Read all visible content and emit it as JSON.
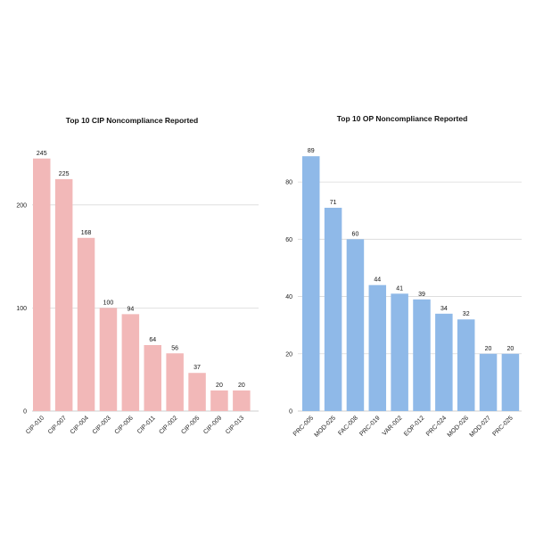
{
  "chart_data": [
    {
      "type": "bar",
      "title": "Top 10 CIP Noncompliance Reported",
      "categories": [
        "CIP-010",
        "CIP-007",
        "CIP-004",
        "CIP-003",
        "CIP-006",
        "CIP-011",
        "CIP-002",
        "CIP-005",
        "CIP-009",
        "CIP-013"
      ],
      "values": [
        245,
        225,
        168,
        100,
        94,
        64,
        56,
        37,
        20,
        20
      ],
      "ylim": [
        0,
        250
      ],
      "yticks": [
        0,
        100,
        200
      ],
      "grid": true,
      "color": "#f2b8b8"
    },
    {
      "type": "bar",
      "title": "Top 10 OP Noncompliance Reported",
      "categories": [
        "PRC-005",
        "MOD-025",
        "FAC-008",
        "PRC-019",
        "VAR-002",
        "EOP-012",
        "PRC-024",
        "MOD-026",
        "MOD-027",
        "PRC-025"
      ],
      "values": [
        89,
        71,
        60,
        44,
        41,
        39,
        34,
        32,
        20,
        20
      ],
      "ylim": [
        0,
        90
      ],
      "yticks": [
        0,
        20,
        40,
        60,
        80
      ],
      "grid": true,
      "color": "#8fb9e8"
    }
  ]
}
